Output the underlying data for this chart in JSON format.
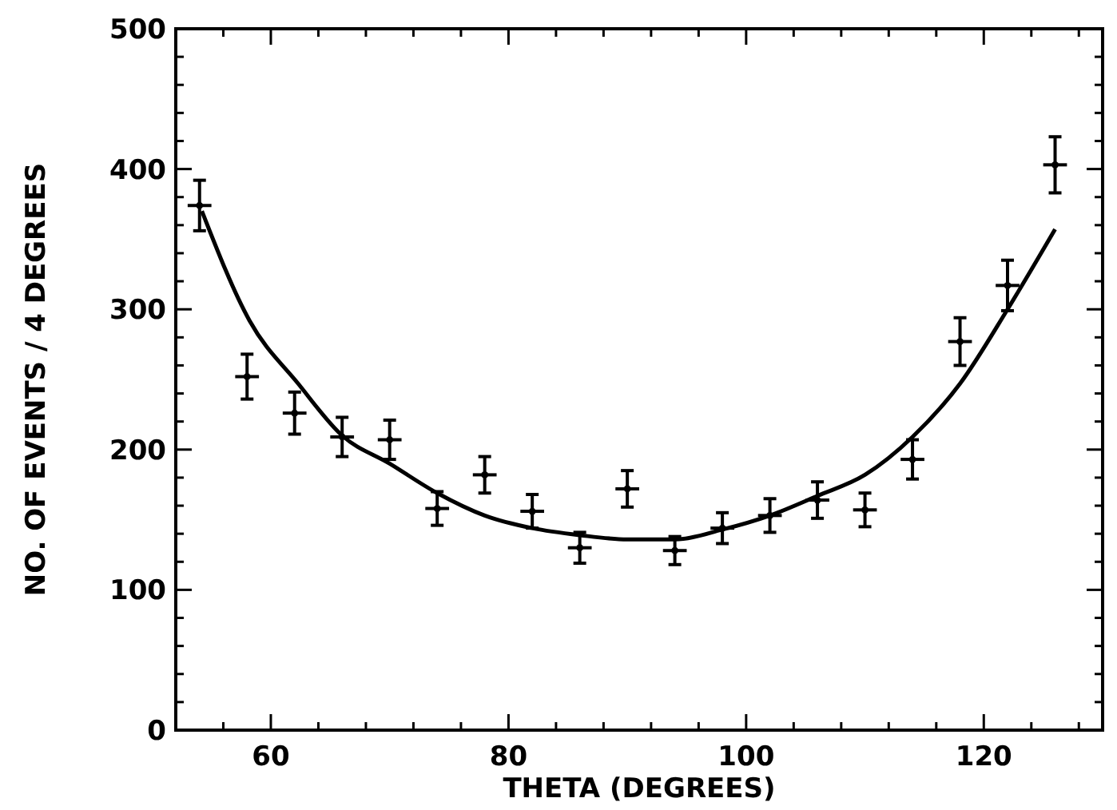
{
  "chart_data": {
    "type": "scatter",
    "xlabel": "THETA (DEGREES)",
    "ylabel": "NO. OF EVENTS / 4 DEGREES",
    "xlim": [
      52,
      130
    ],
    "ylim": [
      0,
      500
    ],
    "xticks": [
      {
        "value": 56,
        "label": null
      },
      60,
      {
        "value": 64,
        "label": null
      },
      {
        "value": 68,
        "label": null
      },
      {
        "value": 72,
        "label": null
      },
      {
        "value": 76,
        "label": null
      },
      80,
      {
        "value": 84,
        "label": null
      },
      {
        "value": 88,
        "label": null
      },
      {
        "value": 92,
        "label": null
      },
      {
        "value": 96,
        "label": null
      },
      100,
      {
        "value": 104,
        "label": null
      },
      {
        "value": 108,
        "label": null
      },
      {
        "value": 112,
        "label": null
      },
      {
        "value": 116,
        "label": null
      },
      120,
      {
        "value": 124,
        "label": null
      },
      {
        "value": 128,
        "label": null
      }
    ],
    "yticks": [
      0,
      {
        "value": 20,
        "label": null
      },
      {
        "value": 40,
        "label": null
      },
      {
        "value": 60,
        "label": null
      },
      {
        "value": 80,
        "label": null
      },
      100,
      {
        "value": 120,
        "label": null
      },
      {
        "value": 140,
        "label": null
      },
      {
        "value": 160,
        "label": null
      },
      {
        "value": 180,
        "label": null
      },
      200,
      {
        "value": 220,
        "label": null
      },
      {
        "value": 240,
        "label": null
      },
      {
        "value": 260,
        "label": null
      },
      {
        "value": 280,
        "label": null
      },
      300,
      {
        "value": 320,
        "label": null
      },
      {
        "value": 340,
        "label": null
      },
      {
        "value": 360,
        "label": null
      },
      {
        "value": 380,
        "label": null
      },
      400,
      {
        "value": 420,
        "label": null
      },
      {
        "value": 440,
        "label": null
      },
      {
        "value": 460,
        "label": null
      },
      {
        "value": 480,
        "label": null
      },
      500
    ],
    "grid": false,
    "series": [
      {
        "color": "#000000",
        "marker": "circle",
        "x": [
          54,
          58,
          62,
          66,
          70,
          74,
          78,
          82,
          86,
          90,
          94,
          98,
          102,
          106,
          110,
          114,
          118,
          122,
          126
        ],
        "values": [
          374,
          252,
          226,
          209,
          207,
          158,
          182,
          156,
          130,
          172,
          128,
          144,
          153,
          164,
          157,
          193,
          277,
          317,
          403
        ],
        "errors": [
          18,
          16,
          15,
          14,
          14,
          12,
          13,
          12,
          11,
          13,
          10,
          11,
          12,
          13,
          12,
          14,
          17,
          18,
          20
        ],
        "xerrors": [
          1,
          1,
          1,
          1,
          1,
          1,
          1,
          1,
          1,
          1,
          1,
          1,
          1,
          1,
          1,
          1,
          1,
          1,
          1
        ]
      },
      {
        "type": "line",
        "color": "#000000",
        "x": [
          54.2,
          58.2,
          62.3,
          66,
          70,
          74,
          78,
          82,
          86,
          90,
          94,
          98,
          102,
          106,
          110,
          114,
          118,
          122,
          126
        ],
        "values": [
          370,
          292,
          247,
          210,
          190,
          169,
          153,
          144,
          139,
          136,
          136,
          143,
          153,
          167,
          182,
          209,
          247,
          300,
          357
        ]
      }
    ]
  }
}
